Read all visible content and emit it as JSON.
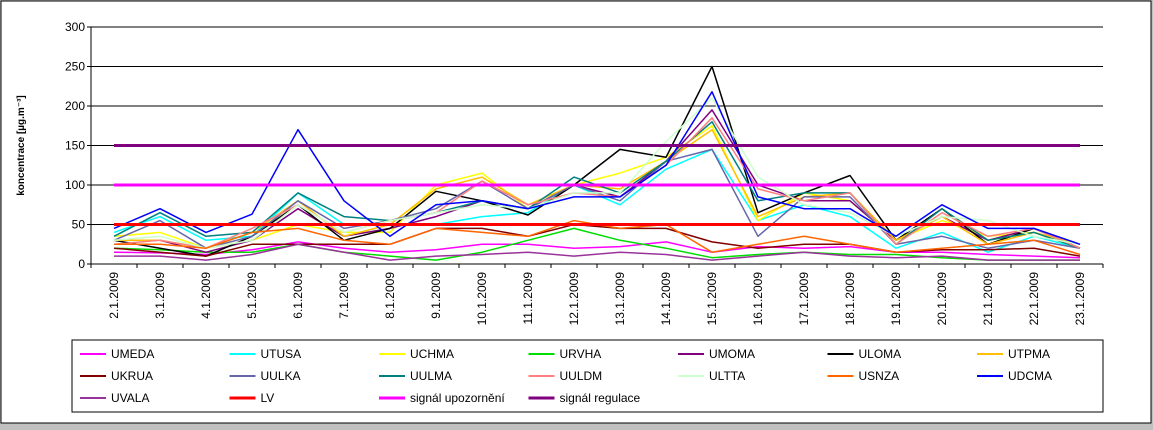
{
  "chart_data": {
    "type": "line",
    "title": "",
    "xlabel": "",
    "ylabel": "koncentrace [µg.m⁻³]",
    "ylim": [
      0,
      300
    ],
    "yticks": [
      0,
      50,
      100,
      150,
      200,
      250,
      300
    ],
    "grid": true,
    "legend_position": "bottom",
    "categories": [
      "2.1.2009",
      "3.1.2009",
      "4.1.2009",
      "5.1.2009",
      "6.1.2009",
      "7.1.2009",
      "8.1.2009",
      "9.1.2009",
      "10.1.2009",
      "11.1.2009",
      "12.1.2009",
      "13.1.2009",
      "14.1.2009",
      "15.1.2009",
      "16.1.2009",
      "17.1.2009",
      "18.1.2009",
      "19.1.2009",
      "20.1.2009",
      "21.1.2009",
      "22.1.2009",
      "23.1.2009"
    ],
    "series": [
      {
        "name": "UMEDA",
        "color": "#ff00ff",
        "values": [
          15,
          14,
          12,
          18,
          28,
          20,
          15,
          18,
          25,
          25,
          20,
          22,
          28,
          15,
          22,
          20,
          22,
          15,
          15,
          12,
          10,
          8
        ]
      },
      {
        "name": "UTUSA",
        "color": "#00ffff",
        "values": [
          40,
          60,
          30,
          35,
          90,
          50,
          50,
          50,
          60,
          65,
          100,
          75,
          120,
          145,
          55,
          75,
          60,
          20,
          40,
          15,
          35,
          20
        ]
      },
      {
        "name": "UCHMA",
        "color": "#ffff00",
        "values": [
          35,
          40,
          20,
          30,
          50,
          40,
          40,
          100,
          115,
          70,
          100,
          115,
          135,
          175,
          55,
          90,
          80,
          30,
          55,
          35,
          40,
          20
        ]
      },
      {
        "name": "URVHA",
        "color": "#00dd00",
        "values": [
          20,
          18,
          15,
          15,
          25,
          15,
          10,
          5,
          15,
          30,
          45,
          30,
          20,
          8,
          12,
          15,
          12,
          12,
          8,
          5,
          5,
          5
        ]
      },
      {
        "name": "UMOMA",
        "color": "#800080",
        "values": [
          30,
          30,
          15,
          30,
          70,
          35,
          45,
          60,
          80,
          70,
          100,
          85,
          130,
          195,
          100,
          80,
          80,
          30,
          60,
          30,
          45,
          25
        ]
      },
      {
        "name": "ULOMA",
        "color": "#000000",
        "values": [
          30,
          20,
          10,
          35,
          75,
          30,
          45,
          92,
          80,
          62,
          100,
          145,
          135,
          250,
          65,
          90,
          112,
          30,
          70,
          25,
          45,
          20
        ]
      },
      {
        "name": "UTPMA",
        "color": "#ffc000",
        "values": [
          30,
          30,
          20,
          40,
          80,
          35,
          50,
          95,
          110,
          75,
          100,
          95,
          130,
          170,
          60,
          85,
          90,
          30,
          60,
          25,
          40,
          25
        ]
      },
      {
        "name": "UKRUA",
        "color": "#800000",
        "values": [
          20,
          15,
          10,
          25,
          25,
          25,
          25,
          45,
          45,
          35,
          50,
          45,
          45,
          28,
          20,
          25,
          25,
          15,
          18,
          18,
          20,
          10
        ]
      },
      {
        "name": "UULKA",
        "color": "#6666aa",
        "values": [
          30,
          55,
          20,
          35,
          80,
          45,
          55,
          70,
          105,
          70,
          100,
          80,
          130,
          145,
          35,
          85,
          85,
          25,
          35,
          20,
          30,
          20
        ]
      },
      {
        "name": "UULMA",
        "color": "#008080",
        "values": [
          35,
          65,
          35,
          40,
          90,
          60,
          55,
          65,
          80,
          70,
          110,
          90,
          130,
          180,
          80,
          90,
          90,
          25,
          70,
          30,
          40,
          20
        ]
      },
      {
        "name": "UULDM",
        "color": "#ff8080",
        "values": [
          25,
          30,
          20,
          45,
          75,
          40,
          55,
          65,
          105,
          75,
          90,
          85,
          125,
          185,
          95,
          80,
          90,
          25,
          65,
          35,
          45,
          20
        ]
      },
      {
        "name": "ULTTA",
        "color": "#ccffcc",
        "values": [
          30,
          35,
          20,
          30,
          75,
          40,
          55,
          65,
          75,
          70,
          90,
          90,
          155,
          210,
          110,
          75,
          65,
          35,
          60,
          55,
          35,
          25
        ]
      },
      {
        "name": "USNZA",
        "color": "#ff6600",
        "values": [
          25,
          25,
          20,
          40,
          45,
          30,
          25,
          45,
          40,
          35,
          55,
          45,
          50,
          15,
          25,
          35,
          25,
          15,
          20,
          25,
          30,
          12
        ]
      },
      {
        "name": "UDCMA",
        "color": "#0000ff",
        "values": [
          45,
          70,
          40,
          63,
          170,
          80,
          35,
          75,
          80,
          70,
          85,
          85,
          125,
          218,
          85,
          70,
          70,
          35,
          75,
          45,
          45,
          25
        ]
      },
      {
        "name": "UVALA",
        "color": "#993399",
        "values": [
          10,
          10,
          5,
          12,
          25,
          15,
          5,
          10,
          12,
          15,
          10,
          15,
          12,
          5,
          10,
          15,
          10,
          8,
          10,
          5,
          5,
          5
        ]
      },
      {
        "name": "LV",
        "color": "#ff0000",
        "width": 3,
        "values": [
          50,
          50,
          50,
          50,
          50,
          50,
          50,
          50,
          50,
          50,
          50,
          50,
          50,
          50,
          50,
          50,
          50,
          50,
          50,
          50,
          50,
          50
        ]
      },
      {
        "name": "signál upozornění",
        "color": "#ff00ff",
        "width": 3,
        "values": [
          100,
          100,
          100,
          100,
          100,
          100,
          100,
          100,
          100,
          100,
          100,
          100,
          100,
          100,
          100,
          100,
          100,
          100,
          100,
          100,
          100,
          100
        ]
      },
      {
        "name": "signál regulace",
        "color": "#800080",
        "width": 3,
        "values": [
          150,
          150,
          150,
          150,
          150,
          150,
          150,
          150,
          150,
          150,
          150,
          150,
          150,
          150,
          150,
          150,
          150,
          150,
          150,
          150,
          150,
          150
        ]
      }
    ]
  }
}
